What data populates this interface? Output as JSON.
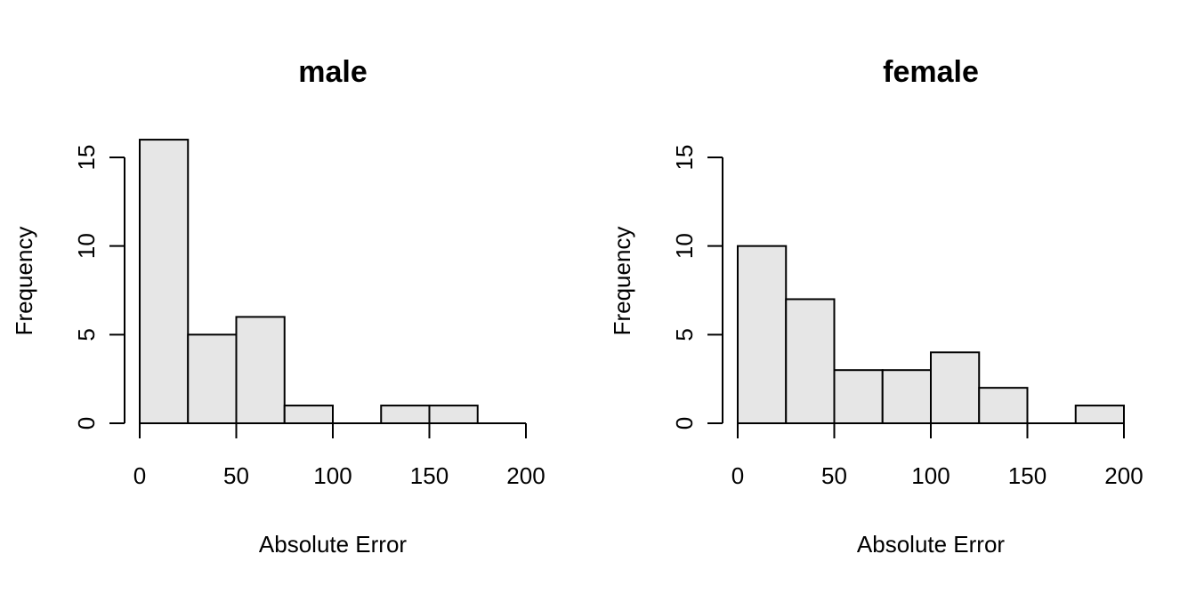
{
  "chart_data": [
    {
      "type": "bar",
      "title": "male",
      "xlabel": "Absolute Error",
      "ylabel": "Frequency",
      "bins": [
        [
          0,
          25
        ],
        [
          25,
          50
        ],
        [
          50,
          75
        ],
        [
          75,
          100
        ],
        [
          100,
          125
        ],
        [
          125,
          150
        ],
        [
          150,
          175
        ]
      ],
      "values": [
        16,
        5,
        6,
        1,
        0,
        1,
        1
      ],
      "xticks": [
        0,
        50,
        100,
        150,
        200
      ],
      "yticks": [
        0,
        5,
        10,
        15
      ],
      "xlim": [
        0,
        200
      ],
      "ylim": [
        0,
        16
      ]
    },
    {
      "type": "bar",
      "title": "female",
      "xlabel": "Absolute Error",
      "ylabel": "Frequency",
      "bins": [
        [
          0,
          25
        ],
        [
          25,
          50
        ],
        [
          50,
          75
        ],
        [
          75,
          100
        ],
        [
          100,
          125
        ],
        [
          125,
          150
        ],
        [
          150,
          175
        ],
        [
          175,
          200
        ]
      ],
      "values": [
        10,
        7,
        3,
        3,
        4,
        2,
        0,
        1
      ],
      "xticks": [
        0,
        50,
        100,
        150,
        200
      ],
      "yticks": [
        0,
        5,
        10,
        15
      ],
      "xlim": [
        0,
        200
      ],
      "ylim": [
        0,
        16
      ]
    }
  ]
}
